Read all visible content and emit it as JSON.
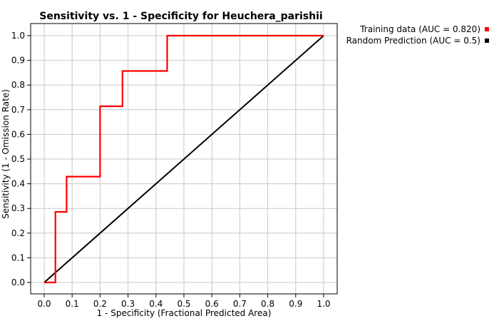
{
  "chart_data": {
    "type": "line",
    "title": "Sensitivity vs. 1 - Specificity for Heuchera_parishii",
    "xlabel": "1 - Specificity  (Fractional Predicted Area)",
    "ylabel": "Sensitivity  (1 - Omission Rate)",
    "xlim": [
      0.0,
      1.0
    ],
    "ylim": [
      0.0,
      1.0
    ],
    "x_ticks": [
      "0.0",
      "0.1",
      "0.2",
      "0.3",
      "0.4",
      "0.5",
      "0.6",
      "0.7",
      "0.8",
      "0.9",
      "1.0"
    ],
    "y_ticks": [
      "0.0",
      "0.1",
      "0.2",
      "0.3",
      "0.4",
      "0.5",
      "0.6",
      "0.7",
      "0.8",
      "0.9",
      "1.0"
    ],
    "grid": true,
    "legend_position": "top-right",
    "series": [
      {
        "name": "Training data (AUC = 0.820)",
        "color": "#ff0000",
        "points": [
          [
            0.0,
            0.0
          ],
          [
            0.04,
            0.0
          ],
          [
            0.04,
            0.286
          ],
          [
            0.08,
            0.286
          ],
          [
            0.08,
            0.429
          ],
          [
            0.2,
            0.429
          ],
          [
            0.2,
            0.714
          ],
          [
            0.28,
            0.714
          ],
          [
            0.28,
            0.857
          ],
          [
            0.44,
            0.857
          ],
          [
            0.44,
            1.0
          ],
          [
            1.0,
            1.0
          ]
        ]
      },
      {
        "name": "Random Prediction (AUC = 0.5)",
        "color": "#000000",
        "points": [
          [
            0.0,
            0.0
          ],
          [
            1.0,
            1.0
          ]
        ]
      }
    ]
  }
}
